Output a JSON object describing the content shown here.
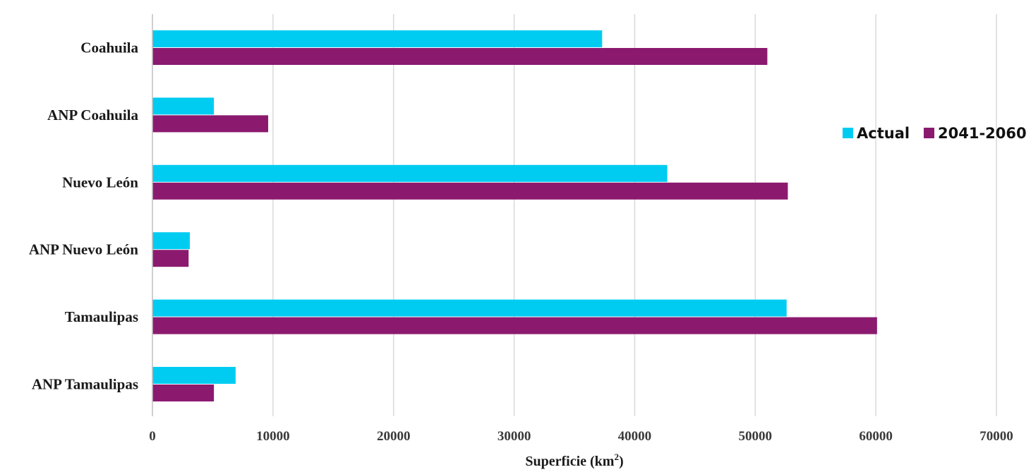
{
  "chart_data": {
    "type": "bar",
    "orientation": "horizontal",
    "categories": [
      "Coahuila",
      "ANP Coahuila",
      "Nuevo León",
      "ANP Nuevo León",
      "Tamaulipas",
      "ANP Tamaulipas"
    ],
    "series": [
      {
        "name": "Actual",
        "color": "#00CCF2",
        "values": [
          37300,
          5100,
          42700,
          3100,
          52600,
          6900
        ]
      },
      {
        "name": "2041-2060",
        "color": "#8B1A6F",
        "values": [
          51000,
          9600,
          52700,
          3000,
          60100,
          5100
        ]
      }
    ],
    "xlabel": "Superficie (km",
    "xlabel_sup": "2",
    "xlabel_end": ")",
    "xlim": [
      0,
      70000
    ],
    "xticks": [
      0,
      10000,
      20000,
      30000,
      40000,
      50000,
      60000,
      70000
    ],
    "grid": true,
    "legend_position": "right"
  }
}
